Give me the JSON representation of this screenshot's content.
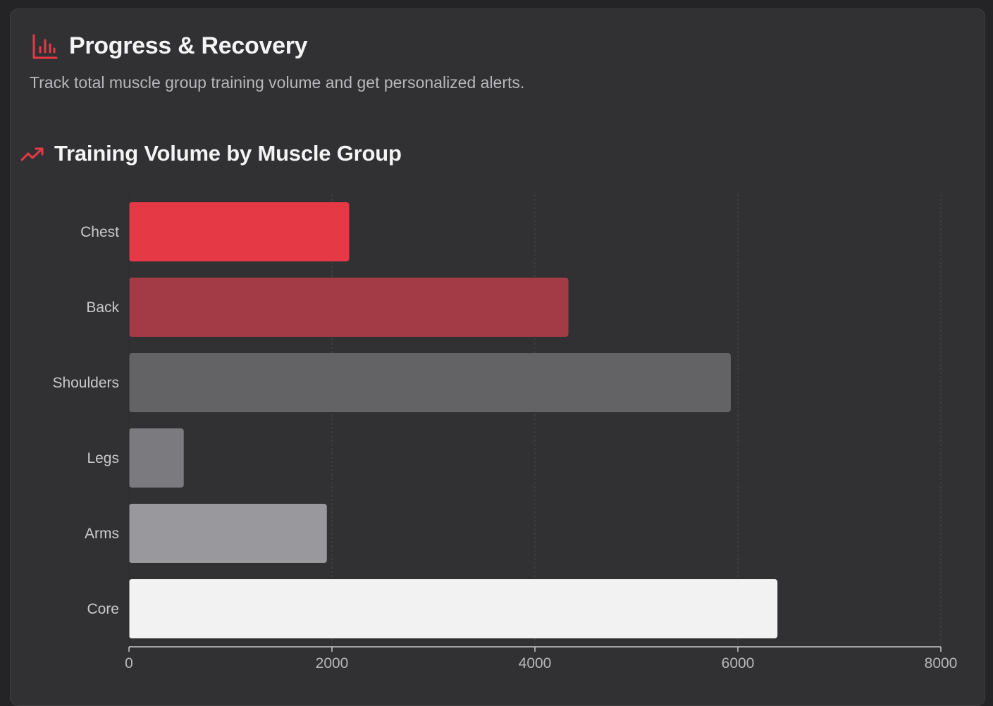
{
  "header": {
    "title": "Progress & Recovery",
    "icon": "bar-chart-icon",
    "subtitle": "Track total muscle group training volume and get personalized alerts."
  },
  "section": {
    "title": "Training Volume by Muscle Group",
    "icon": "trending-up-icon"
  },
  "colors": {
    "accent": "#e63946",
    "background": "#313133",
    "page": "#242426"
  },
  "chart_data": {
    "type": "bar",
    "orientation": "horizontal",
    "title": "Training Volume by Muscle Group",
    "categories": [
      "Chest",
      "Back",
      "Shoulders",
      "Legs",
      "Arms",
      "Core"
    ],
    "values": [
      2170,
      4330,
      5930,
      540,
      1950,
      6390
    ],
    "colors": [
      "#e63946",
      "#a23b46",
      "#636366",
      "#7b7b7f",
      "#98989d",
      "#f2f2f2"
    ],
    "xlim": [
      0,
      8000
    ],
    "xticks": [
      0,
      2000,
      4000,
      6000,
      8000
    ],
    "grid": true,
    "xlabel": "",
    "ylabel": ""
  }
}
